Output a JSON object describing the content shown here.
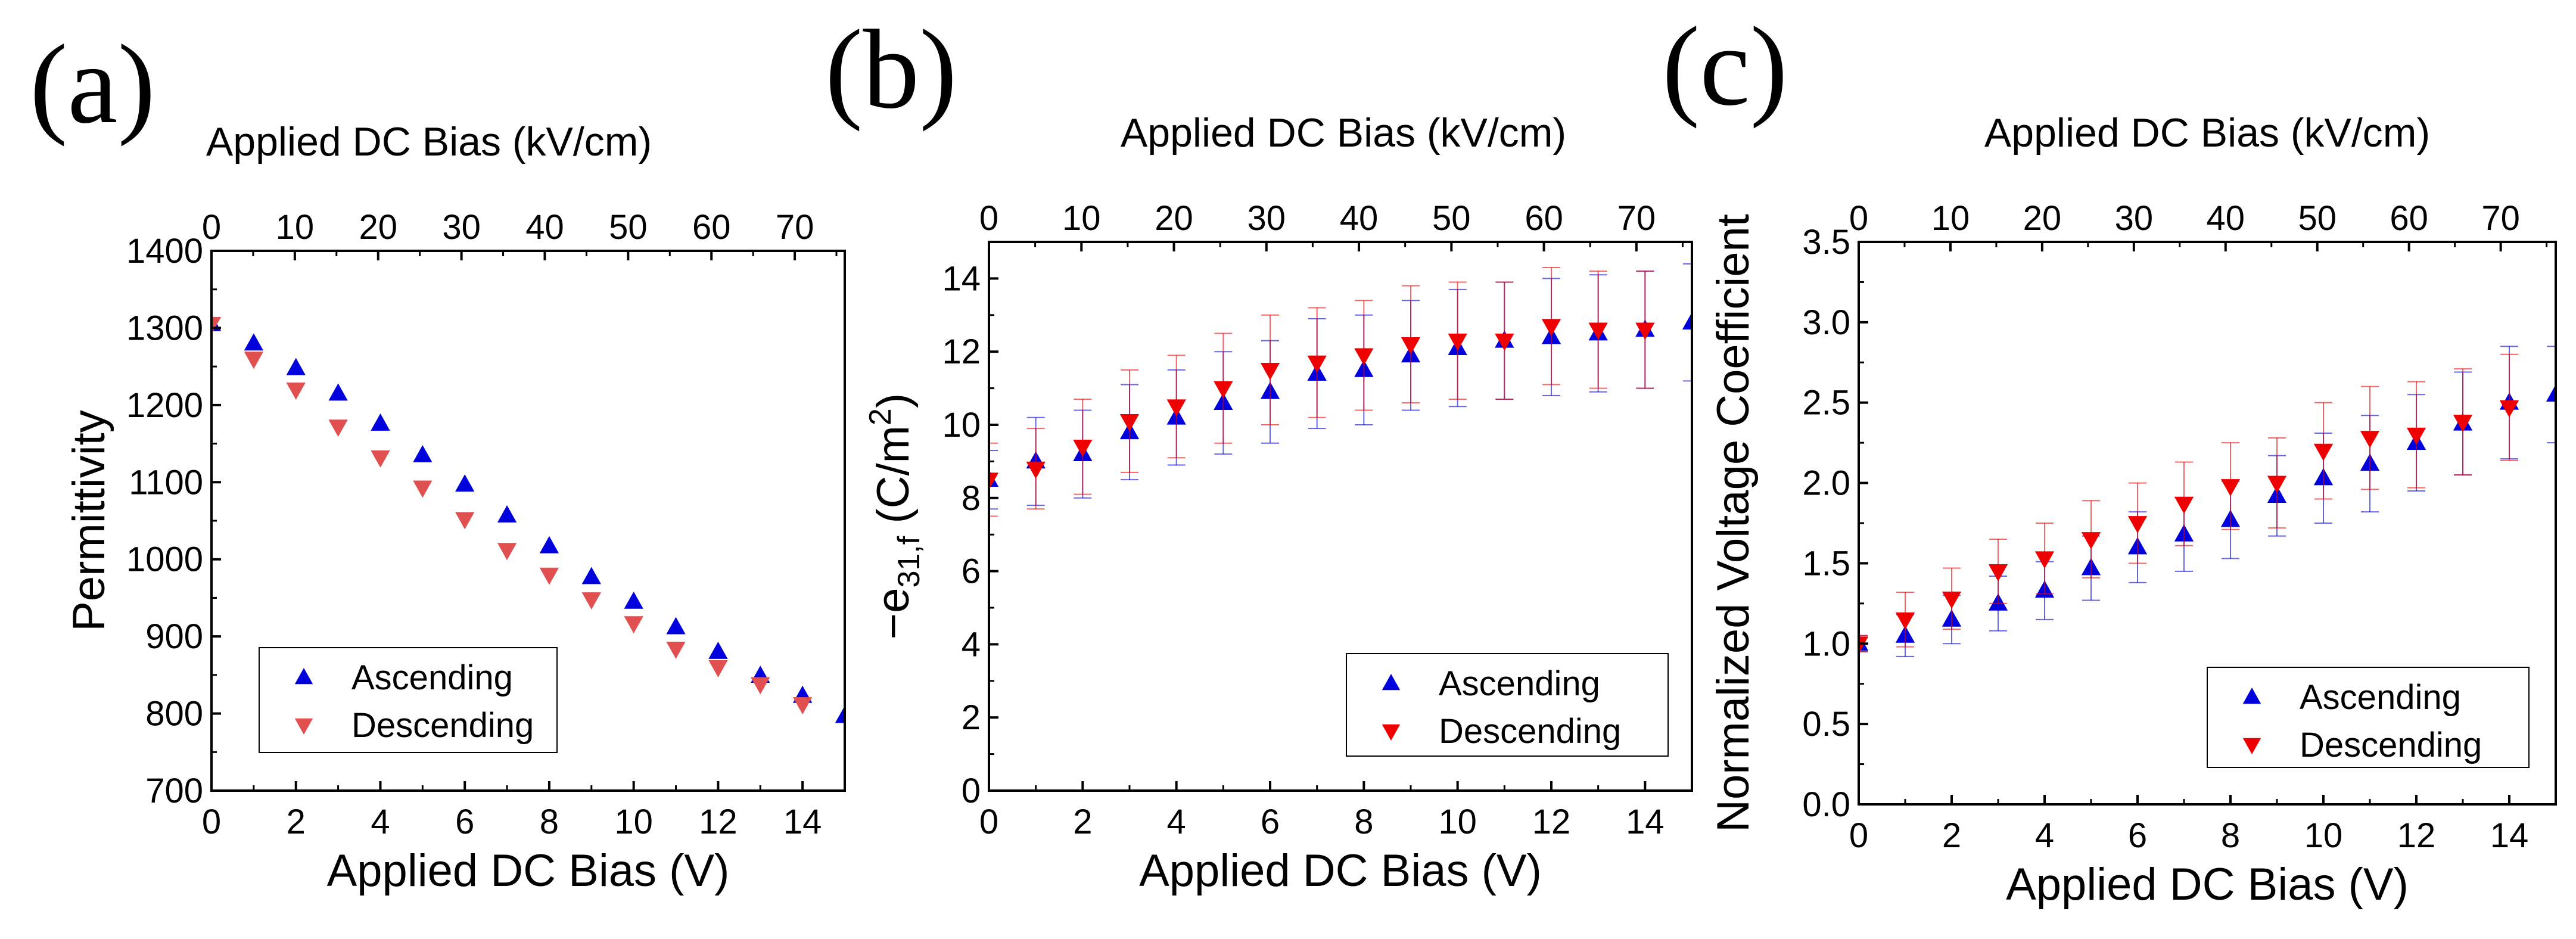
{
  "figure": {
    "panels": [
      {
        "label": "(a)"
      },
      {
        "label": "(b)"
      },
      {
        "label": "(c)"
      }
    ]
  },
  "chart_data": [
    {
      "type": "scatter",
      "panel_label": "(a)",
      "xlabel": "Applied DC Bias (V)",
      "ylabel": "Permittivity",
      "top_xlabel": "Applied DC Bias (kV/cm)",
      "xlim": [
        0,
        15
      ],
      "ylim": [
        700,
        1400
      ],
      "xticks": [
        0,
        2,
        4,
        6,
        8,
        10,
        12,
        14
      ],
      "yticks": [
        700,
        800,
        900,
        1000,
        1100,
        1200,
        1300,
        1400
      ],
      "top_xlim": [
        0,
        76
      ],
      "top_xticks": [
        0,
        10,
        20,
        30,
        40,
        50,
        60,
        70
      ],
      "legend_position": "bottom-left",
      "series": [
        {
          "name": "Ascending",
          "marker": "triangle-up",
          "color": "#0000dd",
          "x": [
            0,
            1,
            2,
            3,
            4,
            5,
            6,
            7,
            8,
            9,
            10,
            11,
            12,
            13,
            14,
            15
          ],
          "y": [
            1305,
            1280,
            1248,
            1215,
            1176,
            1135,
            1097,
            1057,
            1017,
            977,
            945,
            912,
            880,
            849,
            823,
            797
          ]
        },
        {
          "name": "Descending",
          "marker": "triangle-down",
          "color": "#e05050",
          "x": [
            0,
            1,
            2,
            3,
            4,
            5,
            6,
            7,
            8,
            9,
            10,
            11,
            12,
            13,
            14
          ],
          "y": [
            1305,
            1260,
            1220,
            1172,
            1132,
            1093,
            1052,
            1012,
            980,
            948,
            917,
            884,
            860,
            838,
            812
          ]
        }
      ]
    },
    {
      "type": "scatter",
      "panel_label": "(b)",
      "xlabel": "Applied DC Bias (V)",
      "ylabel": "−e31,f (C/m2)",
      "ylabel_parts": {
        "prefix": "−e",
        "sub": "31,f",
        "middle": " (C/m",
        "sup": "2",
        "suffix": ")"
      },
      "top_xlabel": "Applied DC Bias (kV/cm)",
      "xlim": [
        0,
        15
      ],
      "ylim": [
        0,
        15
      ],
      "xticks": [
        0,
        2,
        4,
        6,
        8,
        10,
        12,
        14
      ],
      "yticks": [
        0,
        2,
        4,
        6,
        8,
        10,
        12,
        14
      ],
      "top_xlim": [
        0,
        76
      ],
      "top_xticks": [
        0,
        10,
        20,
        30,
        40,
        50,
        60,
        70
      ],
      "legend_position": "bottom-right",
      "series": [
        {
          "name": "Ascending",
          "marker": "triangle-up",
          "color": "#0000dd",
          "x": [
            0,
            1,
            2,
            3,
            4,
            5,
            6,
            7,
            8,
            9,
            10,
            11,
            12,
            13,
            14,
            15
          ],
          "y": [
            8.5,
            9.0,
            9.2,
            9.8,
            10.2,
            10.6,
            10.9,
            11.4,
            11.5,
            11.9,
            12.1,
            12.3,
            12.4,
            12.5,
            12.6,
            12.8
          ],
          "err": [
            0.8,
            1.2,
            1.2,
            1.3,
            1.3,
            1.4,
            1.4,
            1.5,
            1.5,
            1.5,
            1.6,
            1.6,
            1.6,
            1.6,
            1.6,
            1.6
          ]
        },
        {
          "name": "Descending",
          "marker": "triangle-down",
          "color": "#ee0000",
          "x": [
            0,
            1,
            2,
            3,
            4,
            5,
            6,
            7,
            8,
            9,
            10,
            11,
            12,
            13,
            14
          ],
          "y": [
            8.5,
            8.8,
            9.4,
            10.1,
            10.5,
            11.0,
            11.5,
            11.7,
            11.9,
            12.2,
            12.3,
            12.3,
            12.7,
            12.6,
            12.6
          ],
          "err": [
            1.0,
            1.1,
            1.3,
            1.4,
            1.4,
            1.5,
            1.5,
            1.5,
            1.5,
            1.6,
            1.6,
            1.6,
            1.6,
            1.6,
            1.6
          ]
        }
      ]
    },
    {
      "type": "scatter",
      "panel_label": "(c)",
      "xlabel": "Applied DC Bias (V)",
      "ylabel": "Normalized Voltage Coefficient",
      "top_xlabel": "Applied DC Bias (kV/cm)",
      "xlim": [
        0,
        15
      ],
      "ylim": [
        0,
        3.5
      ],
      "xticks": [
        0,
        2,
        4,
        6,
        8,
        10,
        12,
        14
      ],
      "yticks": [
        0.0,
        0.5,
        1.0,
        1.5,
        2.0,
        2.5,
        3.0,
        3.5
      ],
      "ytick_labels": [
        "0.0",
        "0.5",
        "1.0",
        "1.5",
        "2.0",
        "2.5",
        "3.0",
        "3.5"
      ],
      "top_xlim": [
        0,
        76
      ],
      "top_xticks": [
        0,
        10,
        20,
        30,
        40,
        50,
        60,
        70
      ],
      "legend_position": "bottom-right",
      "series": [
        {
          "name": "Ascending",
          "marker": "triangle-up",
          "color": "#0000dd",
          "x": [
            0,
            1,
            2,
            3,
            4,
            5,
            6,
            7,
            8,
            9,
            10,
            11,
            12,
            13,
            14,
            15
          ],
          "y": [
            1.0,
            1.05,
            1.15,
            1.25,
            1.33,
            1.47,
            1.6,
            1.68,
            1.77,
            1.92,
            2.03,
            2.12,
            2.25,
            2.37,
            2.5,
            2.55
          ],
          "err": [
            0.05,
            0.13,
            0.15,
            0.17,
            0.18,
            0.2,
            0.22,
            0.23,
            0.24,
            0.25,
            0.28,
            0.3,
            0.3,
            0.32,
            0.35,
            0.3
          ]
        },
        {
          "name": "Descending",
          "marker": "triangle-down",
          "color": "#ee0000",
          "x": [
            0,
            1,
            2,
            3,
            4,
            5,
            6,
            7,
            8,
            9,
            10,
            11,
            12,
            13,
            14
          ],
          "y": [
            1.0,
            1.15,
            1.28,
            1.45,
            1.53,
            1.65,
            1.75,
            1.87,
            1.98,
            2.0,
            2.2,
            2.28,
            2.3,
            2.38,
            2.47
          ],
          "err": [
            0.05,
            0.17,
            0.19,
            0.2,
            0.22,
            0.24,
            0.25,
            0.26,
            0.27,
            0.28,
            0.3,
            0.32,
            0.33,
            0.33,
            0.33
          ]
        }
      ]
    }
  ]
}
